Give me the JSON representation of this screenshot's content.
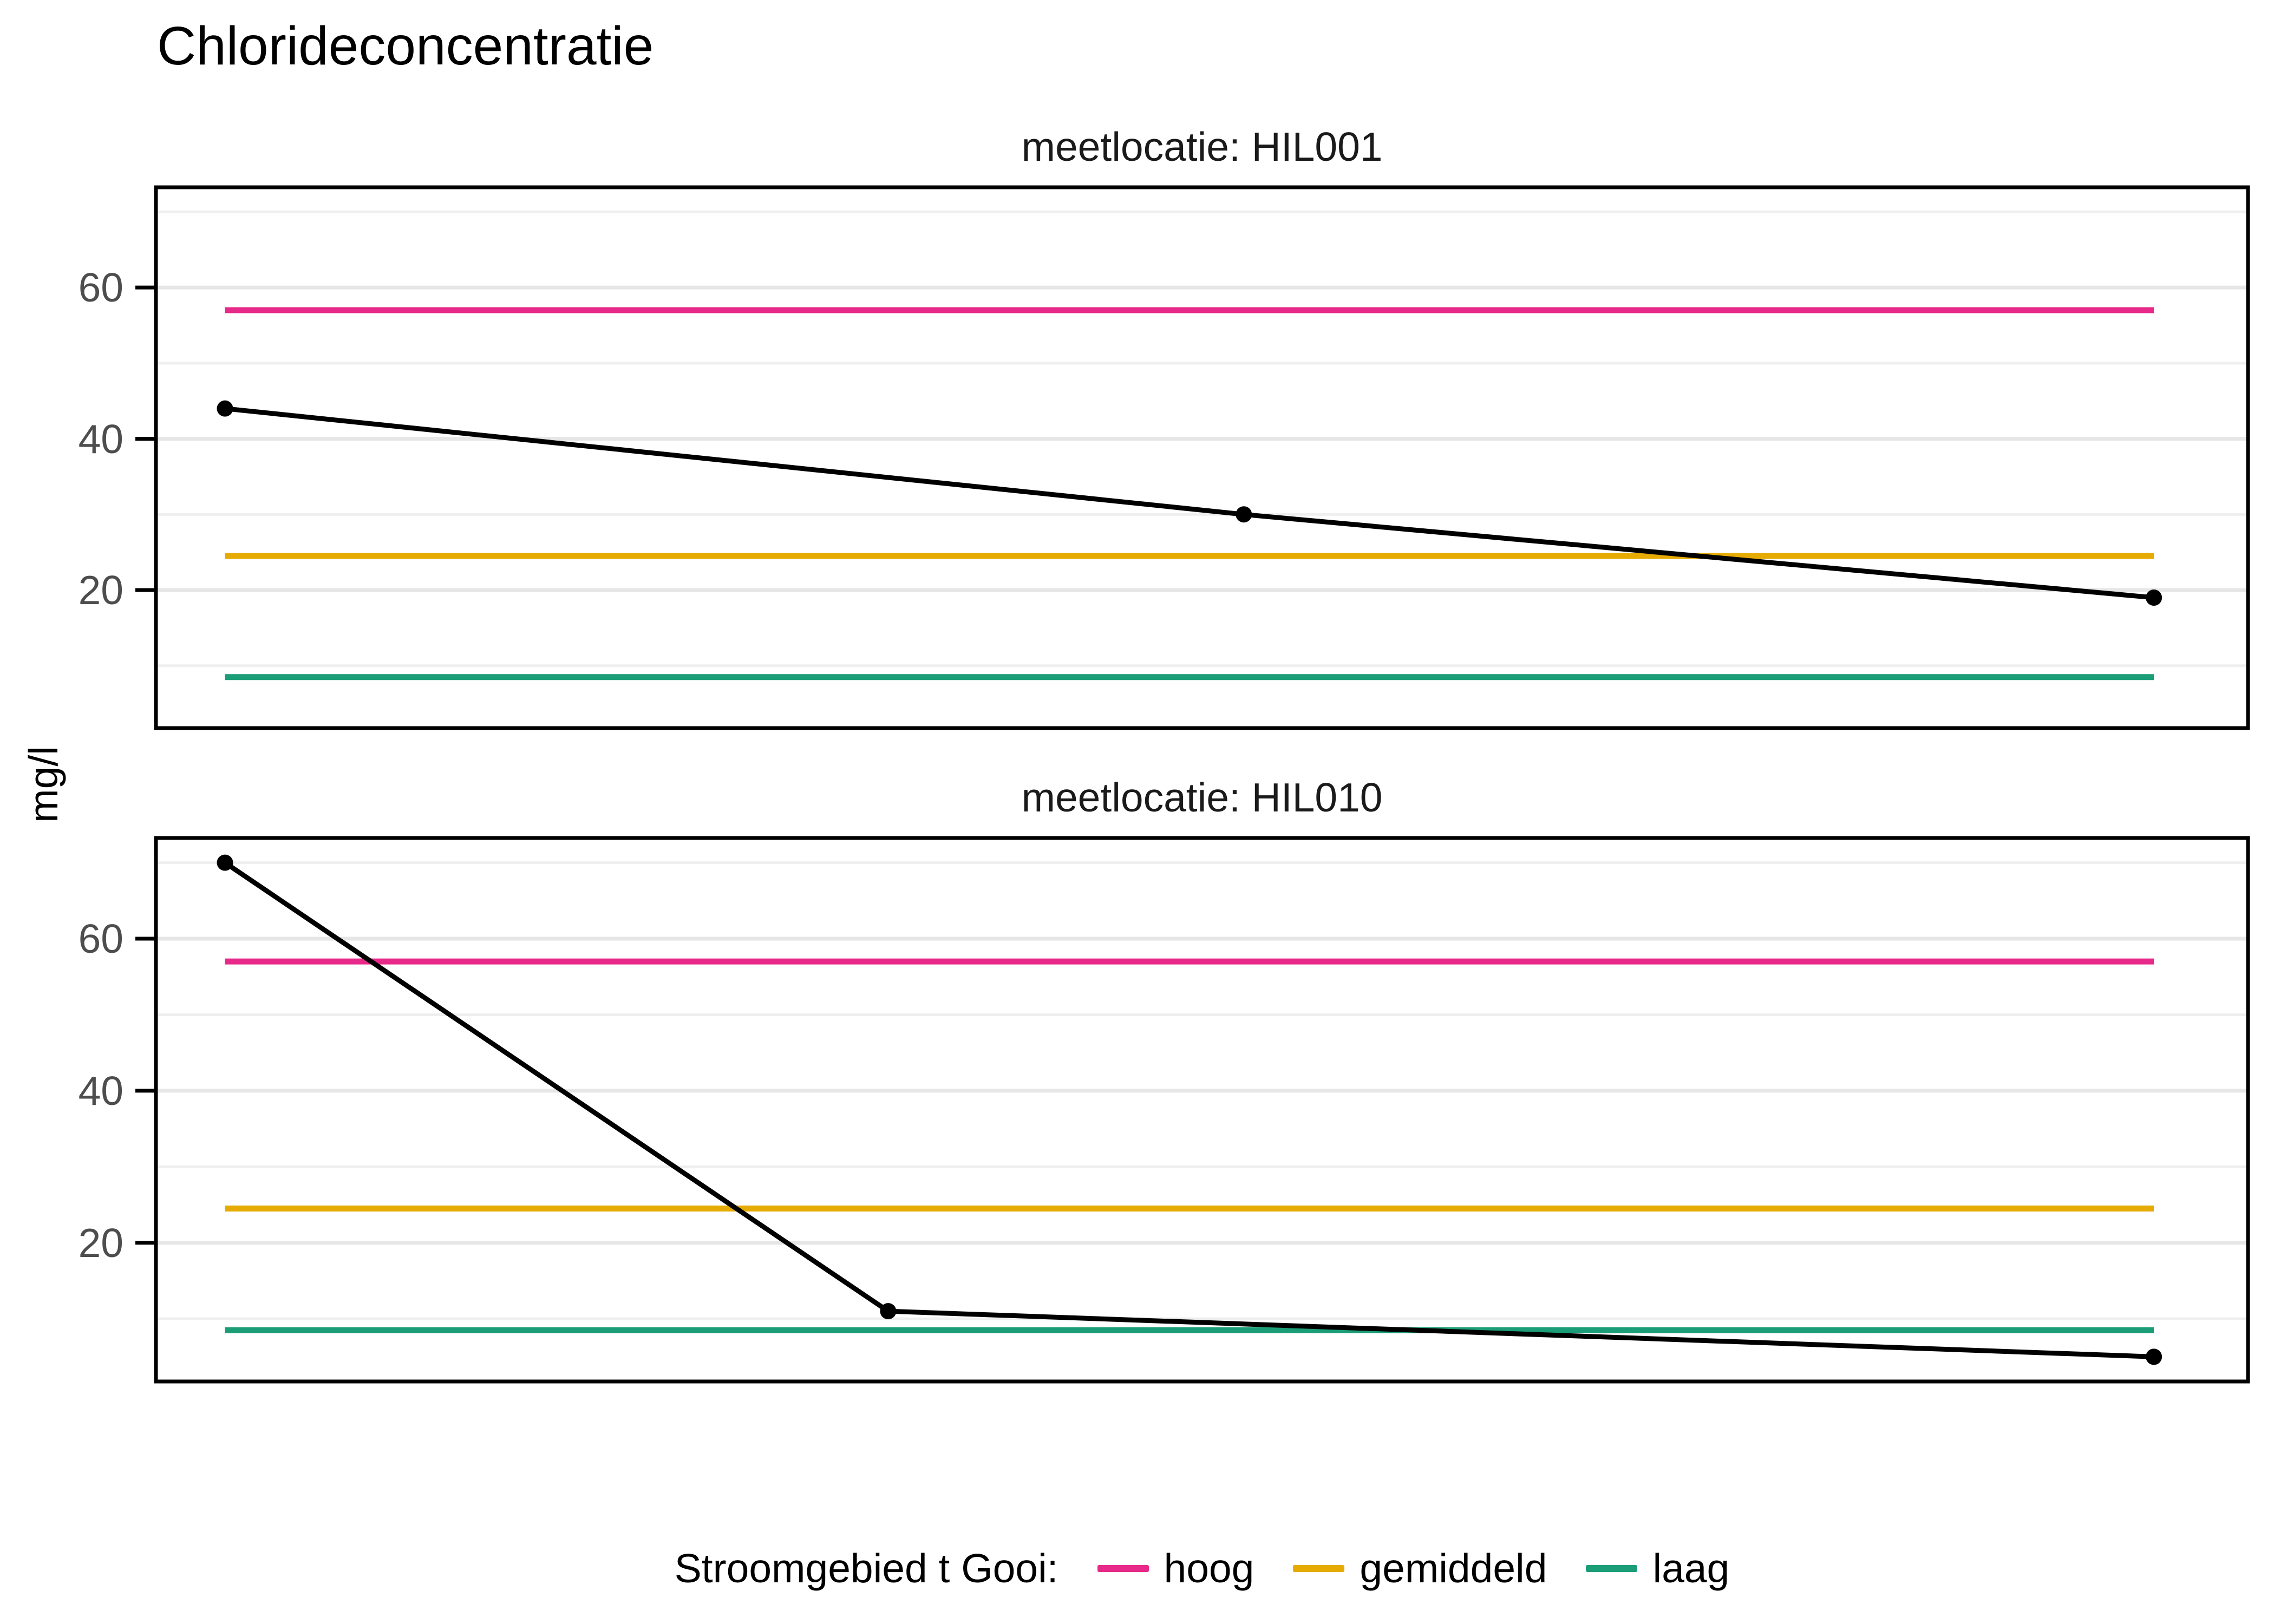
{
  "title": "Chlorideconcentratie",
  "y_axis": {
    "label": "mg/l",
    "tick_labels": [
      "20",
      "40",
      "60"
    ]
  },
  "chart_data": {
    "type": "line",
    "title": "Chlorideconcentratie",
    "ylabel": "mg/l",
    "ylim": [
      1.75,
      73.25
    ],
    "y_ticks": [
      20,
      40,
      60
    ],
    "y_minor_gridlines": [
      10,
      30,
      50,
      70
    ],
    "grid": "horizontal major and minor gridlines, light gray, white panel, black panel border",
    "x_axis": {
      "tick_labels_visible": false
    },
    "facets": [
      {
        "label": "meetlocatie: HIL001",
        "series": {
          "name": "chlorideconcentratie",
          "color": "#000000",
          "points": [
            {
              "x_frac": 0.033,
              "y": 44
            },
            {
              "x_frac": 0.52,
              "y": 30
            },
            {
              "x_frac": 0.955,
              "y": 19
            }
          ]
        }
      },
      {
        "label": "meetlocatie: HIL010",
        "series": {
          "name": "chlorideconcentratie",
          "color": "#000000",
          "points": [
            {
              "x_frac": 0.033,
              "y": 70
            },
            {
              "x_frac": 0.35,
              "y": 11
            },
            {
              "x_frac": 0.955,
              "y": 5
            }
          ]
        }
      }
    ],
    "reference_lines": [
      {
        "label": "hoog",
        "value": 57,
        "color": "#E7298A"
      },
      {
        "label": "gemiddeld",
        "value": 24.5,
        "color": "#E6AB02"
      },
      {
        "label": "laag",
        "value": 8.5,
        "color": "#1B9E77"
      }
    ],
    "legend_position": "bottom center"
  },
  "legend": {
    "title": "Stroomgebied t Gooi:",
    "items": [
      {
        "label": "hoog",
        "color": "#E7298A"
      },
      {
        "label": "gemiddeld",
        "color": "#E6AB02"
      },
      {
        "label": "laag",
        "color": "#1B9E77"
      }
    ]
  },
  "colors": {
    "data_line": "#000000",
    "hoog": "#E7298A",
    "gemiddeld": "#E6AB02",
    "laag": "#1B9E77",
    "grid_major": "#e6e6e6",
    "grid_minor": "#efefef",
    "panel_border": "#000000",
    "tick_text": "#4d4d4d"
  }
}
